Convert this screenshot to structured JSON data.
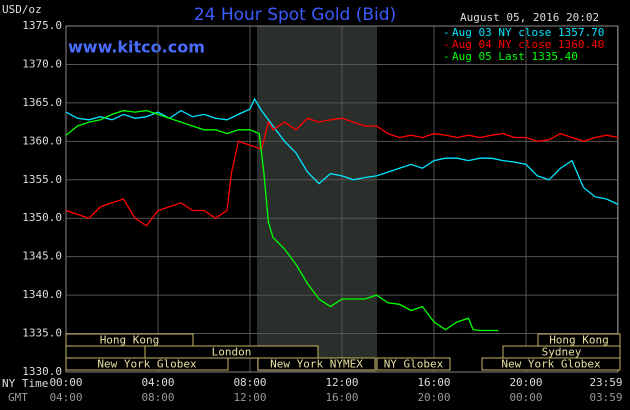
{
  "chart_data": {
    "type": "line",
    "title": "24 Hour Spot Gold (Bid)",
    "y_label": "USD/oz",
    "date": "August 05, 2016 20:02",
    "site": "www.kitco.com",
    "x_label": "NY Time",
    "x2_label": "GMT",
    "xlim": [
      0,
      24
    ],
    "ylim": [
      1330,
      1375
    ],
    "grid": true,
    "legend": "top-right",
    "xticks": [
      {
        "value": 0,
        "label": "00:00"
      },
      {
        "value": 4,
        "label": "04:00"
      },
      {
        "value": 8,
        "label": "08:00"
      },
      {
        "value": 12,
        "label": "12:00"
      },
      {
        "value": 16,
        "label": "16:00"
      },
      {
        "value": 20,
        "label": "20:00"
      },
      {
        "value": 23.98,
        "label": "23:59"
      }
    ],
    "x2ticks": [
      {
        "value": 0,
        "label": "04:00"
      },
      {
        "value": 4,
        "label": "08:00"
      },
      {
        "value": 8,
        "label": "12:00"
      },
      {
        "value": 12,
        "label": "16:00"
      },
      {
        "value": 16,
        "label": "20:00"
      },
      {
        "value": 20,
        "label": "00:00"
      },
      {
        "value": 23.98,
        "label": "03:59"
      }
    ],
    "yticks": [
      {
        "value": 1330,
        "label": "1330.0"
      },
      {
        "value": 1335,
        "label": "1335.0"
      },
      {
        "value": 1340,
        "label": "1340.0"
      },
      {
        "value": 1345,
        "label": "1345.0"
      },
      {
        "value": 1350,
        "label": "1350.0"
      },
      {
        "value": 1355,
        "label": "1355.0"
      },
      {
        "value": 1360,
        "label": "1360.0"
      },
      {
        "value": 1365,
        "label": "1365.0"
      },
      {
        "value": 1370,
        "label": "1370.0"
      },
      {
        "value": 1375,
        "label": "1375.0"
      }
    ],
    "sessions": [
      "Hong Kong",
      "London",
      "New York Globex",
      "New York NYMEX",
      "NY Globex",
      "Hong Kong",
      "Sydney",
      "New York Globex"
    ],
    "series": [
      {
        "name": "Aug 03 NY close 1357.70",
        "color": "#00e5ff",
        "x": [
          0,
          0.5,
          1,
          1.5,
          2,
          2.5,
          3,
          3.5,
          4,
          4.5,
          5,
          5.5,
          6,
          6.5,
          7,
          7.5,
          8,
          8.2,
          8.5,
          9,
          9.5,
          10,
          10.5,
          11,
          11.5,
          12,
          12.5,
          13,
          13.5,
          14,
          14.5,
          15,
          15.5,
          16,
          16.5,
          17,
          17.5,
          18,
          18.5,
          19,
          19.5,
          20,
          20.5,
          21,
          21.5,
          22,
          22.5,
          23,
          23.5,
          24
        ],
        "values": [
          1363.8,
          1363,
          1362.8,
          1363.2,
          1362.8,
          1363.5,
          1363,
          1363.2,
          1363.8,
          1363,
          1364,
          1363.2,
          1363.5,
          1363,
          1362.8,
          1363.5,
          1364.2,
          1365.5,
          1364,
          1362,
          1360,
          1358.5,
          1356,
          1354.5,
          1355.8,
          1355.5,
          1355,
          1355.3,
          1355.5,
          1356,
          1356.5,
          1357,
          1356.5,
          1357.5,
          1357.8,
          1357.8,
          1357.5,
          1357.8,
          1357.8,
          1357.5,
          1357.3,
          1357,
          1355.5,
          1355,
          1356.5,
          1357.5,
          1354,
          1352.8,
          1352.5,
          1351.8
        ]
      },
      {
        "name": "Aug 04 NY close 1360.40",
        "color": "#ff0000",
        "x": [
          0,
          0.5,
          1,
          1.5,
          2,
          2.5,
          3,
          3.5,
          4,
          4.5,
          5,
          5.5,
          6,
          6.5,
          7,
          7.2,
          7.5,
          8,
          8.5,
          8.8,
          9,
          9.5,
          10,
          10.5,
          11,
          11.5,
          12,
          12.5,
          13,
          13.5,
          14,
          14.5,
          15,
          15.5,
          16,
          16.5,
          17,
          17.5,
          18,
          18.5,
          19,
          19.5,
          20,
          20.5,
          21,
          21.5,
          22,
          22.5,
          23,
          23.5,
          24
        ],
        "values": [
          1351,
          1350.5,
          1350,
          1351.5,
          1352,
          1352.5,
          1350,
          1349,
          1351,
          1351.5,
          1352,
          1351,
          1351,
          1350,
          1351,
          1356,
          1360,
          1359.5,
          1359,
          1362.5,
          1361.5,
          1362.5,
          1361.5,
          1363,
          1362.5,
          1362.8,
          1363,
          1362.5,
          1362,
          1362,
          1361,
          1360.5,
          1360.8,
          1360.5,
          1361,
          1360.8,
          1360.5,
          1360.8,
          1360.5,
          1360.8,
          1361,
          1360.5,
          1360.5,
          1360,
          1360.2,
          1361,
          1360.5,
          1360,
          1360.5,
          1360.8,
          1360.5
        ]
      },
      {
        "name": "Aug 05 Last 1335.40",
        "color": "#00ff00",
        "x": [
          0,
          0.5,
          1,
          1.5,
          2,
          2.5,
          3,
          3.5,
          4,
          4.5,
          5,
          5.5,
          6,
          6.5,
          7,
          7.5,
          8,
          8.4,
          8.6,
          8.8,
          9,
          9.5,
          10,
          10.5,
          11,
          11.5,
          12,
          12.5,
          13,
          13.5,
          14,
          14.5,
          15,
          15.5,
          16,
          16.5,
          17,
          17.5,
          17.7,
          18,
          18.5,
          18.8
        ],
        "values": [
          1360.8,
          1362,
          1362.5,
          1362.8,
          1363.5,
          1364,
          1363.8,
          1364,
          1363.5,
          1363,
          1362.5,
          1362,
          1361.5,
          1361.5,
          1361,
          1361.5,
          1361.5,
          1361,
          1356,
          1349.5,
          1347.5,
          1346,
          1344,
          1341.5,
          1339.5,
          1338.5,
          1339.5,
          1339.5,
          1339.5,
          1340,
          1339,
          1338.8,
          1338,
          1338.5,
          1336.5,
          1335.5,
          1336.5,
          1337,
          1335.5,
          1335.4,
          1335.4,
          1335.4
        ]
      }
    ]
  }
}
